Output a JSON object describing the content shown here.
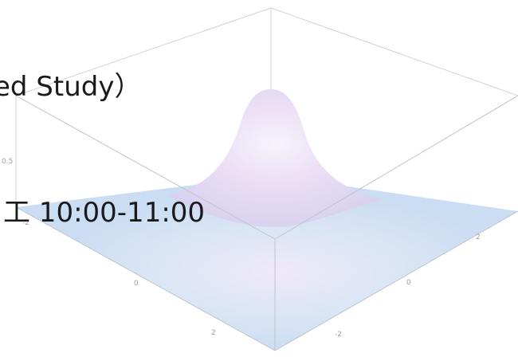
{
  "slide": {
    "line1": "ed Study）",
    "line2": "工 10:00-11:00"
  },
  "plot": {
    "type": "3d-surface",
    "z_tick_labels": [
      "0.5"
    ],
    "axis_tick_labels": [
      "-2",
      "0",
      "2"
    ],
    "colors": {
      "floor": "#c9dcf2",
      "peak": "#f3eef8",
      "mid": "#e6d9f3",
      "box": "#c8ccd2"
    }
  }
}
